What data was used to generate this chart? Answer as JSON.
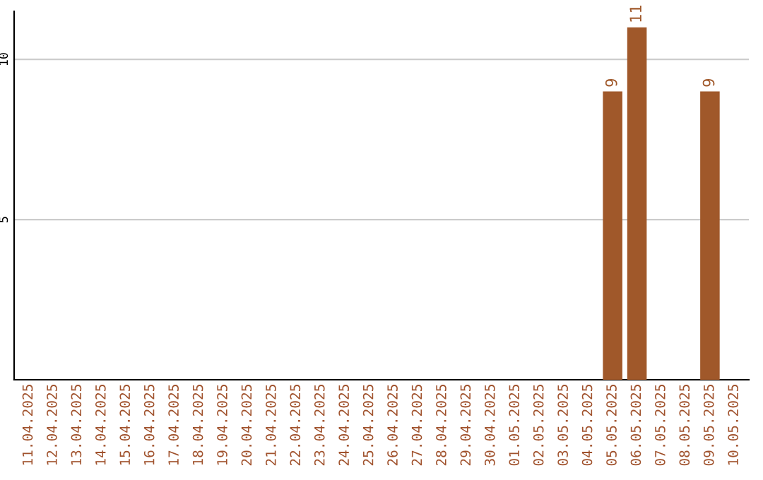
{
  "chart_data": {
    "type": "bar",
    "categories": [
      "11.04.2025",
      "12.04.2025",
      "13.04.2025",
      "14.04.2025",
      "15.04.2025",
      "16.04.2025",
      "17.04.2025",
      "18.04.2025",
      "19.04.2025",
      "20.04.2025",
      "21.04.2025",
      "22.04.2025",
      "23.04.2025",
      "24.04.2025",
      "25.04.2025",
      "26.04.2025",
      "27.04.2025",
      "28.04.2025",
      "29.04.2025",
      "30.04.2025",
      "01.05.2025",
      "02.05.2025",
      "03.05.2025",
      "04.05.2025",
      "05.05.2025",
      "06.05.2025",
      "07.05.2025",
      "08.05.2025",
      "09.05.2025",
      "10.05.2025"
    ],
    "values": [
      0,
      0,
      0,
      0,
      0,
      0,
      0,
      0,
      0,
      0,
      0,
      0,
      0,
      0,
      0,
      0,
      0,
      0,
      0,
      0,
      0,
      0,
      0,
      0,
      9,
      11,
      0,
      0,
      9,
      0
    ],
    "value_labels": [
      null,
      null,
      null,
      null,
      null,
      null,
      null,
      null,
      null,
      null,
      null,
      null,
      null,
      null,
      null,
      null,
      null,
      null,
      null,
      null,
      null,
      null,
      null,
      null,
      "9",
      "11",
      null,
      null,
      "9",
      null
    ],
    "color": "#a0582a",
    "ylim": [
      0,
      11.5
    ],
    "yticks": [
      5,
      10
    ],
    "grid": "y"
  }
}
